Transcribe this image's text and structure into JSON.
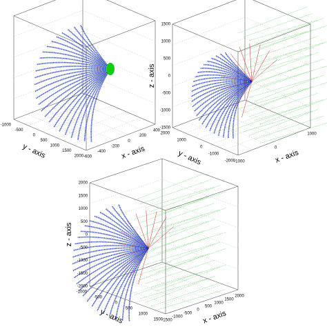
{
  "plots": [
    {
      "xlabel": "x - axis",
      "ylabel": "y - axis",
      "xticks": [
        -600,
        -400,
        -200,
        0,
        200,
        400
      ],
      "yticks": [
        2000,
        1500,
        1000,
        500,
        0,
        -500,
        -1000
      ]
    },
    {
      "xlabel": "x - axis",
      "ylabel": "y - axis",
      "zlabel": "z - axis",
      "xticks": [
        -1000,
        0,
        1000
      ],
      "yticks": [
        -2000,
        -1000,
        0,
        1000,
        2000
      ],
      "zticks": [
        -1500,
        -1000,
        -500,
        0,
        500,
        1000,
        1500
      ]
    },
    {
      "xlabel": "x - axis",
      "ylabel": "y - axis",
      "zlabel": "z - axis",
      "xticks": [
        -1500,
        -1000,
        -500,
        0,
        500,
        1000,
        1500,
        2000
      ],
      "yticks": [
        1500,
        1000,
        500,
        0,
        -500,
        -1000
      ],
      "zticks": [
        -2000,
        -1500,
        -1000,
        -500,
        0,
        500,
        1000,
        1500,
        2000
      ]
    }
  ]
}
